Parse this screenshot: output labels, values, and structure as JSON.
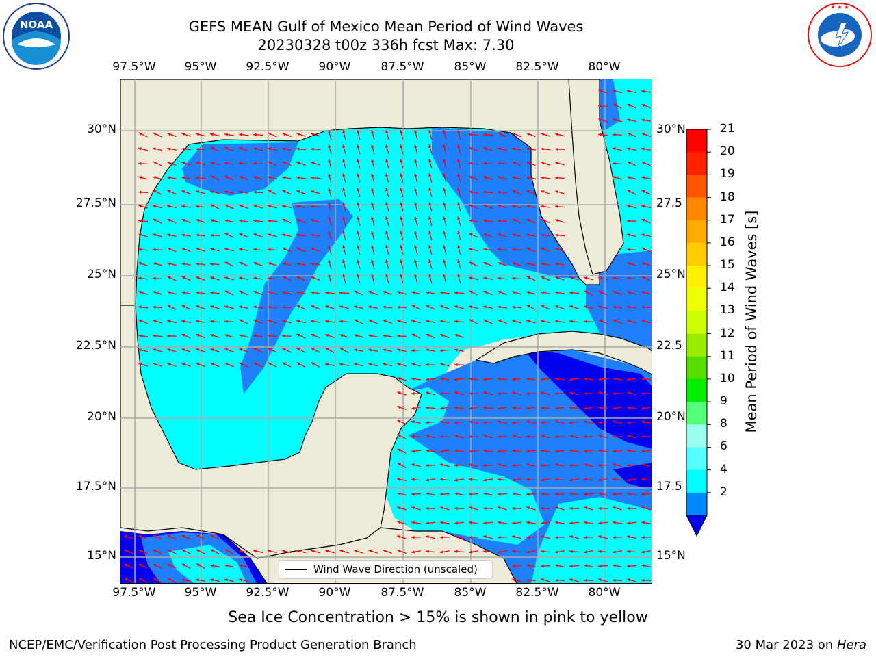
{
  "header": {
    "title_line1": "GEFS MEAN Gulf of Mexico Mean Period of Wind Waves",
    "title_line2": "20230328 t00z 336h fcst   Max: 7.30"
  },
  "logos": {
    "noaa_text": "NOAA",
    "noaa_ring": "NATIONAL OCEANIC AND ATMOSPHERIC ADMINISTRATION · U.S. DEPARTMENT OF COMMERCE",
    "nws_ring": "NATIONAL WEATHER SERVICE"
  },
  "axes": {
    "lon_labels": [
      "97.5°W",
      "95°W",
      "92.5°W",
      "90°W",
      "87.5°W",
      "85°W",
      "82.5°W",
      "80°W"
    ],
    "lat_labels_left": [
      "30°N",
      "27.5°N",
      "25°N",
      "22.5°N",
      "20°N",
      "17.5°N",
      "15°N"
    ],
    "lat_labels_right": [
      "30°N",
      "27.5",
      "25°N",
      "22.5",
      "20°N",
      "17.5",
      "15°N"
    ]
  },
  "colorbar": {
    "title": "Mean Period of Wind Waves [s]",
    "tick_labels": [
      "21",
      "20",
      "19",
      "18",
      "17",
      "16",
      "15",
      "14",
      "13",
      "12",
      "11",
      "10",
      "9",
      "8",
      "6",
      "4",
      "2"
    ],
    "colors": [
      "#fe0000",
      "#ff2200",
      "#ff5500",
      "#ff8800",
      "#ffaa00",
      "#ffcc00",
      "#fff000",
      "#eeff00",
      "#ccff00",
      "#99ee00",
      "#55dd00",
      "#00ee00",
      "#55ff77",
      "#99ffee",
      "#55ffff",
      "#00ffff",
      "#0088ff"
    ],
    "under_color": "#0000ee"
  },
  "map": {
    "land_color": "#efebd9",
    "gulf_colors": {
      "light": "#00ffff",
      "medium": "#1e7fff",
      "dark": "#0000ee",
      "pale": "#66ffee"
    },
    "arrow_color": "#ff0000"
  },
  "legend": {
    "label": "Wind Wave Direction (unscaled)"
  },
  "captions": {
    "sea_ice": "Sea Ice Concentration > 15% is shown in pink to yellow",
    "footer_left": "NCEP/EMC/Verification Post Processing Product Generation Branch",
    "footer_right_date": "30 Mar 2023 on ",
    "footer_right_host": "Hera"
  }
}
